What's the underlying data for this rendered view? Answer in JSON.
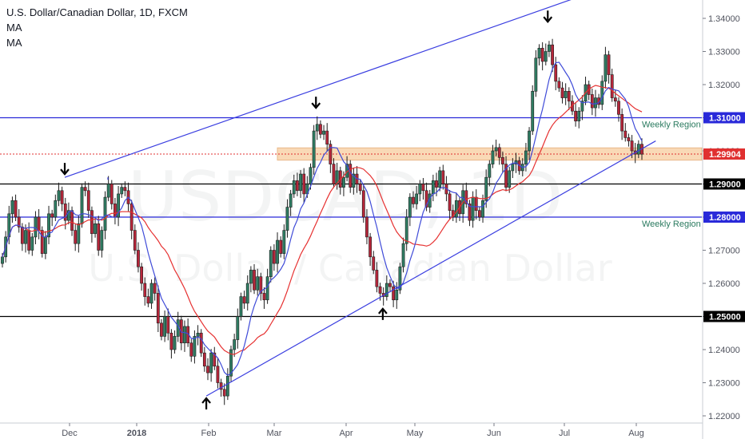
{
  "header": {
    "title": "U.S. Dollar/Canadian Dollar, 1D, FXCM",
    "indicators": [
      "MA",
      "MA"
    ]
  },
  "watermark": {
    "symbol": "USDCAD, 1D",
    "name": "U.S. Dollar / Canadian Dollar"
  },
  "colors": {
    "up_candle": "#2f7d63",
    "down_candle": "#b7263a",
    "ma_fast": "#3f4bd8",
    "ma_slow": "#e63030",
    "channel": "#3a3ee0",
    "zone_fill": "#f9d9b6",
    "current_price": "#e03030",
    "level": "#000000"
  },
  "chart_data": {
    "type": "candlestick",
    "symbol": "USDCAD",
    "timeframe": "1D",
    "source": "FXCM",
    "x_ticks": [
      "Dec",
      "2018",
      "Feb",
      "Mar",
      "Apr",
      "May",
      "Jun",
      "Jul",
      "Aug"
    ],
    "y_ticks": [
      "1.22000",
      "1.23000",
      "1.24000",
      "1.25000",
      "1.26000",
      "1.27000",
      "1.28000",
      "1.29000",
      "1.30000",
      "1.31000",
      "1.32000",
      "1.33000",
      "1.34000"
    ],
    "ylim": [
      1.219,
      1.345
    ],
    "price_labels": [
      {
        "value": "1.31000",
        "color": "#2929d9"
      },
      {
        "value": "1.29904",
        "color": "#e03030"
      },
      {
        "value": "1.29000",
        "color": "#000000"
      },
      {
        "value": "1.28000",
        "color": "#2929d9"
      },
      {
        "value": "1.25000",
        "color": "#000000"
      }
    ],
    "horizontal_levels": [
      {
        "value": 1.31,
        "color": "#2929d9",
        "label": "Weekly Region"
      },
      {
        "value": 1.29,
        "color": "#000000",
        "label": ""
      },
      {
        "value": 1.28,
        "color": "#2929d9",
        "label": "Weekly Region"
      },
      {
        "value": 1.25,
        "color": "#000000",
        "label": ""
      }
    ],
    "current_price": 1.29904,
    "zone": [
      1.2972,
      1.3009
    ],
    "channel_upper": [
      {
        "date": "2017-11-27",
        "price": 1.292
      },
      {
        "date": "2018-08-06",
        "price": 1.353
      }
    ],
    "channel_lower": [
      {
        "date": "2018-01-31",
        "price": 1.226
      },
      {
        "date": "2018-08-13",
        "price": 1.303
      }
    ],
    "arrows": [
      {
        "date": "2017-11-27",
        "price": 1.2925,
        "direction": "down"
      },
      {
        "date": "2018-03-19",
        "price": 1.3125,
        "direction": "down"
      },
      {
        "date": "2018-06-27",
        "price": 1.3385,
        "direction": "down"
      },
      {
        "date": "2018-01-31",
        "price": 1.2258,
        "direction": "up"
      },
      {
        "date": "2018-04-17",
        "price": 1.2528,
        "direction": "up"
      }
    ],
    "closes": [
      1.268,
      1.274,
      1.281,
      1.285,
      1.28,
      1.277,
      1.272,
      1.276,
      1.27,
      1.274,
      1.28,
      1.276,
      1.269,
      1.274,
      1.281,
      1.28,
      1.285,
      1.288,
      1.284,
      1.279,
      1.282,
      1.276,
      1.272,
      1.278,
      1.289,
      1.288,
      1.282,
      1.275,
      1.278,
      1.27,
      1.276,
      1.286,
      1.29,
      1.284,
      1.28,
      1.287,
      1.289,
      1.288,
      1.284,
      1.276,
      1.27,
      1.265,
      1.26,
      1.256,
      1.254,
      1.26,
      1.257,
      1.248,
      1.244,
      1.25,
      1.245,
      1.24,
      1.244,
      1.249,
      1.242,
      1.247,
      1.242,
      1.238,
      1.244,
      1.245,
      1.239,
      1.235,
      1.233,
      1.239,
      1.235,
      1.23,
      1.228,
      1.226,
      1.232,
      1.24,
      1.243,
      1.25,
      1.256,
      1.254,
      1.26,
      1.264,
      1.258,
      1.262,
      1.257,
      1.255,
      1.262,
      1.27,
      1.266,
      1.273,
      1.269,
      1.276,
      1.283,
      1.287,
      1.291,
      1.288,
      1.293,
      1.287,
      1.29,
      1.295,
      1.306,
      1.308,
      1.305,
      1.306,
      1.302,
      1.296,
      1.29,
      1.294,
      1.289,
      1.292,
      1.296,
      1.289,
      1.293,
      1.29,
      1.288,
      1.28,
      1.274,
      1.268,
      1.264,
      1.259,
      1.257,
      1.256,
      1.26,
      1.259,
      1.255,
      1.258,
      1.265,
      1.272,
      1.28,
      1.286,
      1.284,
      1.287,
      1.29,
      1.288,
      1.283,
      1.287,
      1.291,
      1.289,
      1.294,
      1.29,
      1.287,
      1.282,
      1.28,
      1.285,
      1.281,
      1.288,
      1.284,
      1.279,
      1.286,
      1.282,
      1.28,
      1.285,
      1.292,
      1.296,
      1.3,
      1.301,
      1.298,
      1.296,
      1.289,
      1.294,
      1.296,
      1.297,
      1.294,
      1.296,
      1.3,
      1.306,
      1.318,
      1.328,
      1.331,
      1.327,
      1.33,
      1.332,
      1.326,
      1.321,
      1.319,
      1.316,
      1.318,
      1.315,
      1.312,
      1.309,
      1.312,
      1.315,
      1.32,
      1.317,
      1.313,
      1.316,
      1.314,
      1.321,
      1.329,
      1.323,
      1.316,
      1.315,
      1.311,
      1.306,
      1.304,
      1.303,
      1.3,
      1.299,
      1.302,
      1.299
    ]
  }
}
